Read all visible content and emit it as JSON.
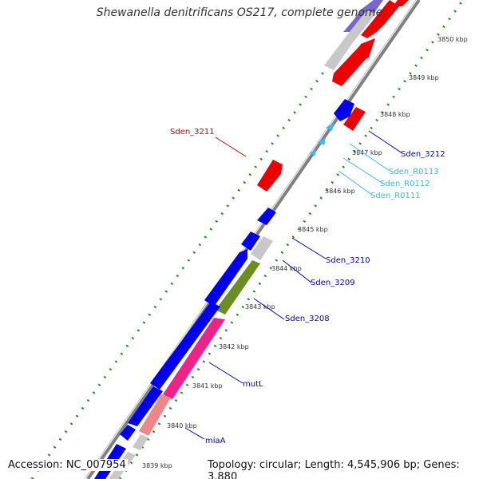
{
  "title": "Shewanella denitrificans OS217, complete genome",
  "footer": {
    "accession": "Accession: NC_007954",
    "summary": "Topology: circular; Length: 4,545,906 bp; Genes: 3,880"
  },
  "ticks": [
    "3850 kbp",
    "3849 kbp",
    "3848 kbp",
    "3847 kbp",
    "3846 kbp",
    "3845 kbp",
    "3844 kbp",
    "3843 kbp",
    "3842 kbp",
    "3841 kbp",
    "3840 kbp",
    "3839 kbp"
  ],
  "gene_labels": [
    "Sden_3211",
    "Sden_3212",
    "Sden_R0113",
    "Sden_R0112",
    "Sden_R0111",
    "Sden_3210",
    "Sden_3209",
    "Sden_3208",
    "mutL",
    "miaA"
  ],
  "colors": {
    "backbone": "#808080",
    "cds": "#0000ee",
    "cds_other": "#ee0000",
    "trna": "#33bbee",
    "rrna_grey": "#c8c8c8",
    "olive": "#6b8e23",
    "magenta": "#ee2288",
    "salmon": "#ee8888",
    "gc_ticks": "#228b22",
    "label_blue": "#0000cc",
    "label_cyan": "#33bbee",
    "label_red": "#cc0000"
  }
}
